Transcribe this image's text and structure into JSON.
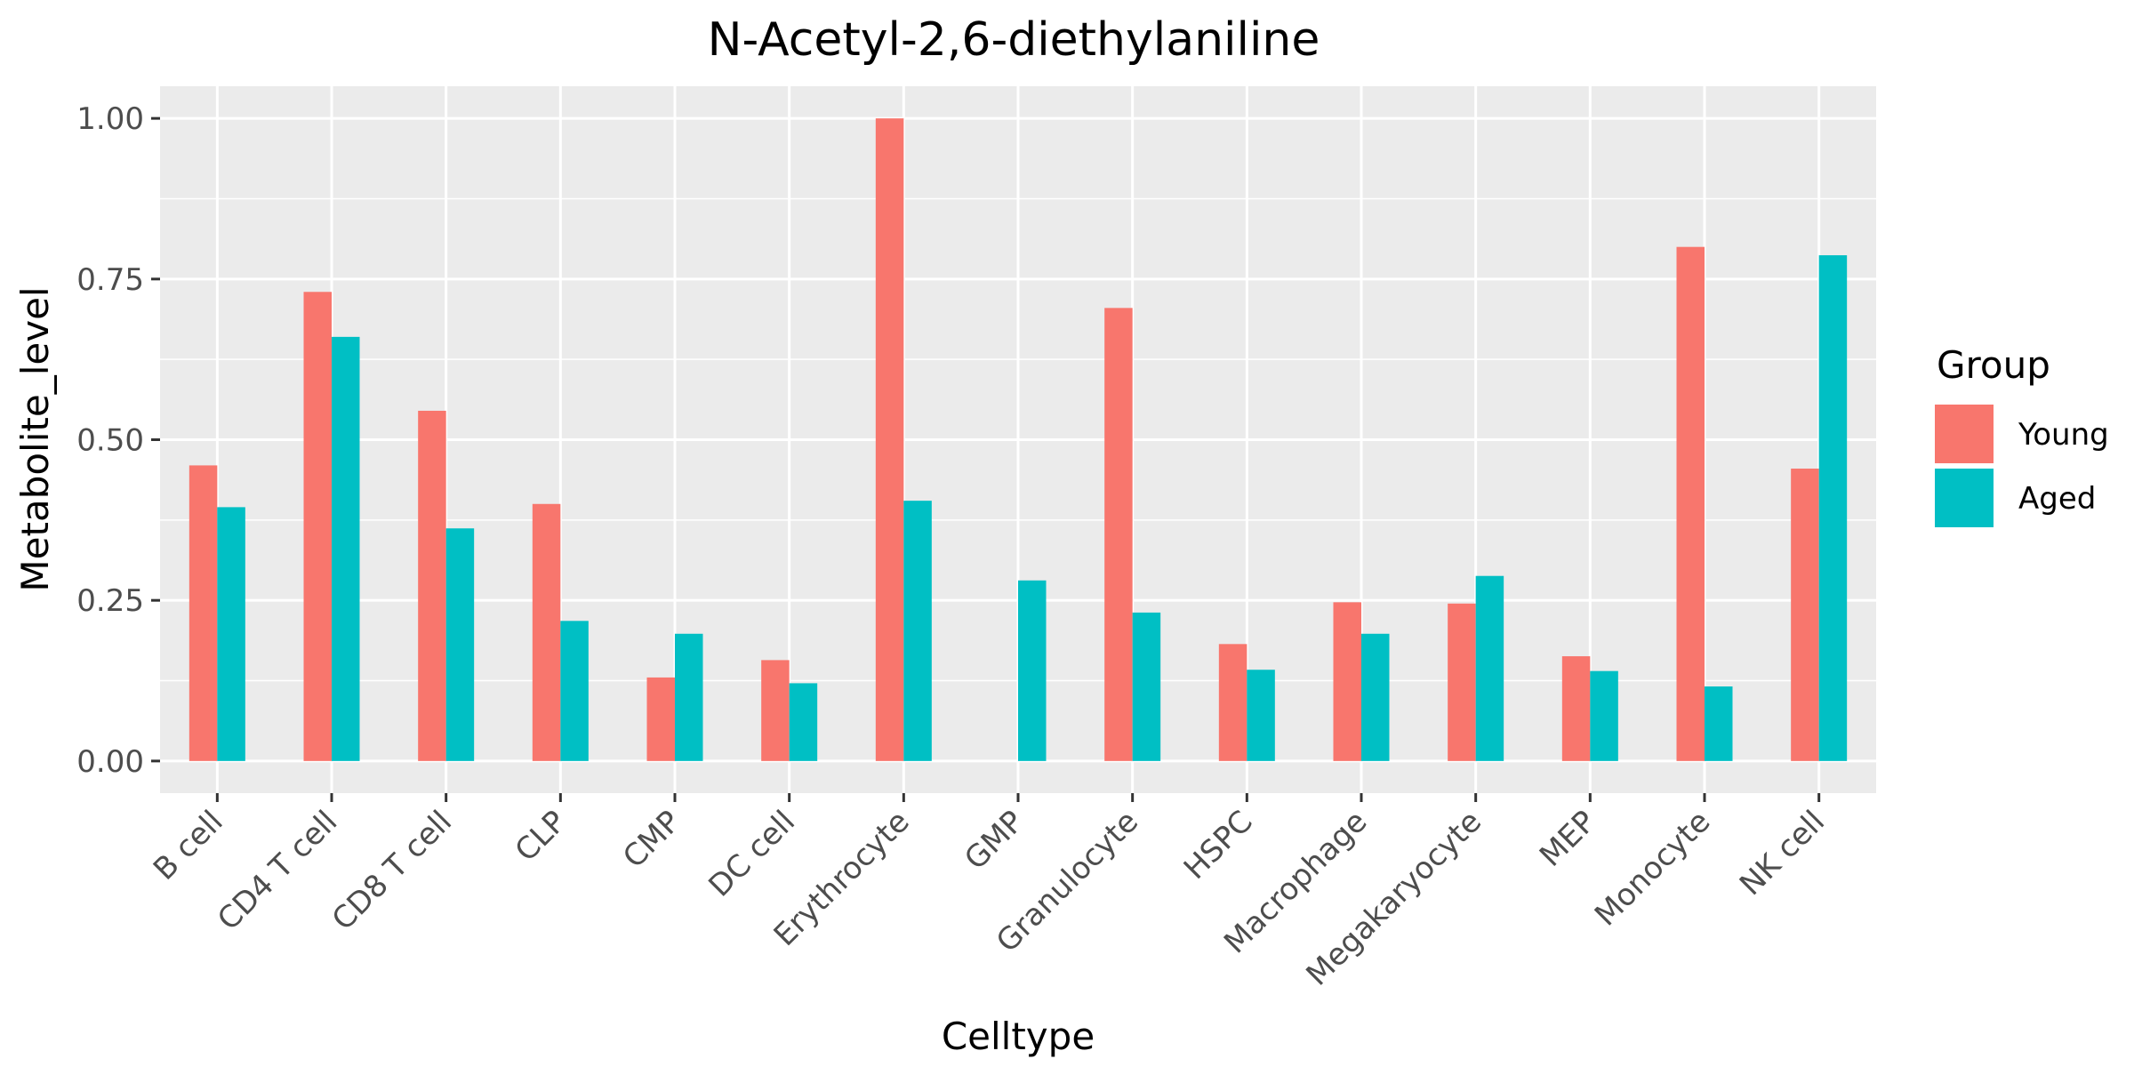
{
  "chart_data": {
    "type": "bar",
    "title": "N-Acetyl-2,6-diethylaniline",
    "xlabel": "Celltype",
    "ylabel": "Metabolite_level",
    "ylim": [
      -0.05,
      1.05
    ],
    "yticks": [
      0.0,
      0.25,
      0.5,
      0.75,
      1.0
    ],
    "ytick_labels": [
      "0.00",
      "0.25",
      "0.50",
      "0.75",
      "1.00"
    ],
    "grid": true,
    "legend": {
      "title": "Group",
      "position": "right"
    },
    "categories": [
      "B cell",
      "CD4 T cell",
      "CD8 T cell",
      "CLP",
      "CMP",
      "DC cell",
      "Erythrocyte",
      "GMP",
      "Granulocyte",
      "HSPC",
      "Macrophage",
      "Megakaryocyte",
      "MEP",
      "Monocyte",
      "NK cell"
    ],
    "series": [
      {
        "name": "Young",
        "color": "#F8766D",
        "values": [
          0.46,
          0.73,
          0.545,
          0.4,
          0.13,
          0.157,
          1.0,
          null,
          0.705,
          0.182,
          0.247,
          0.245,
          0.163,
          0.8,
          0.455
        ]
      },
      {
        "name": "Aged",
        "color": "#00BFC4",
        "values": [
          0.395,
          0.66,
          0.362,
          0.218,
          0.198,
          0.121,
          0.405,
          0.281,
          0.231,
          0.142,
          0.198,
          0.288,
          0.14,
          0.116,
          0.787
        ]
      }
    ]
  }
}
